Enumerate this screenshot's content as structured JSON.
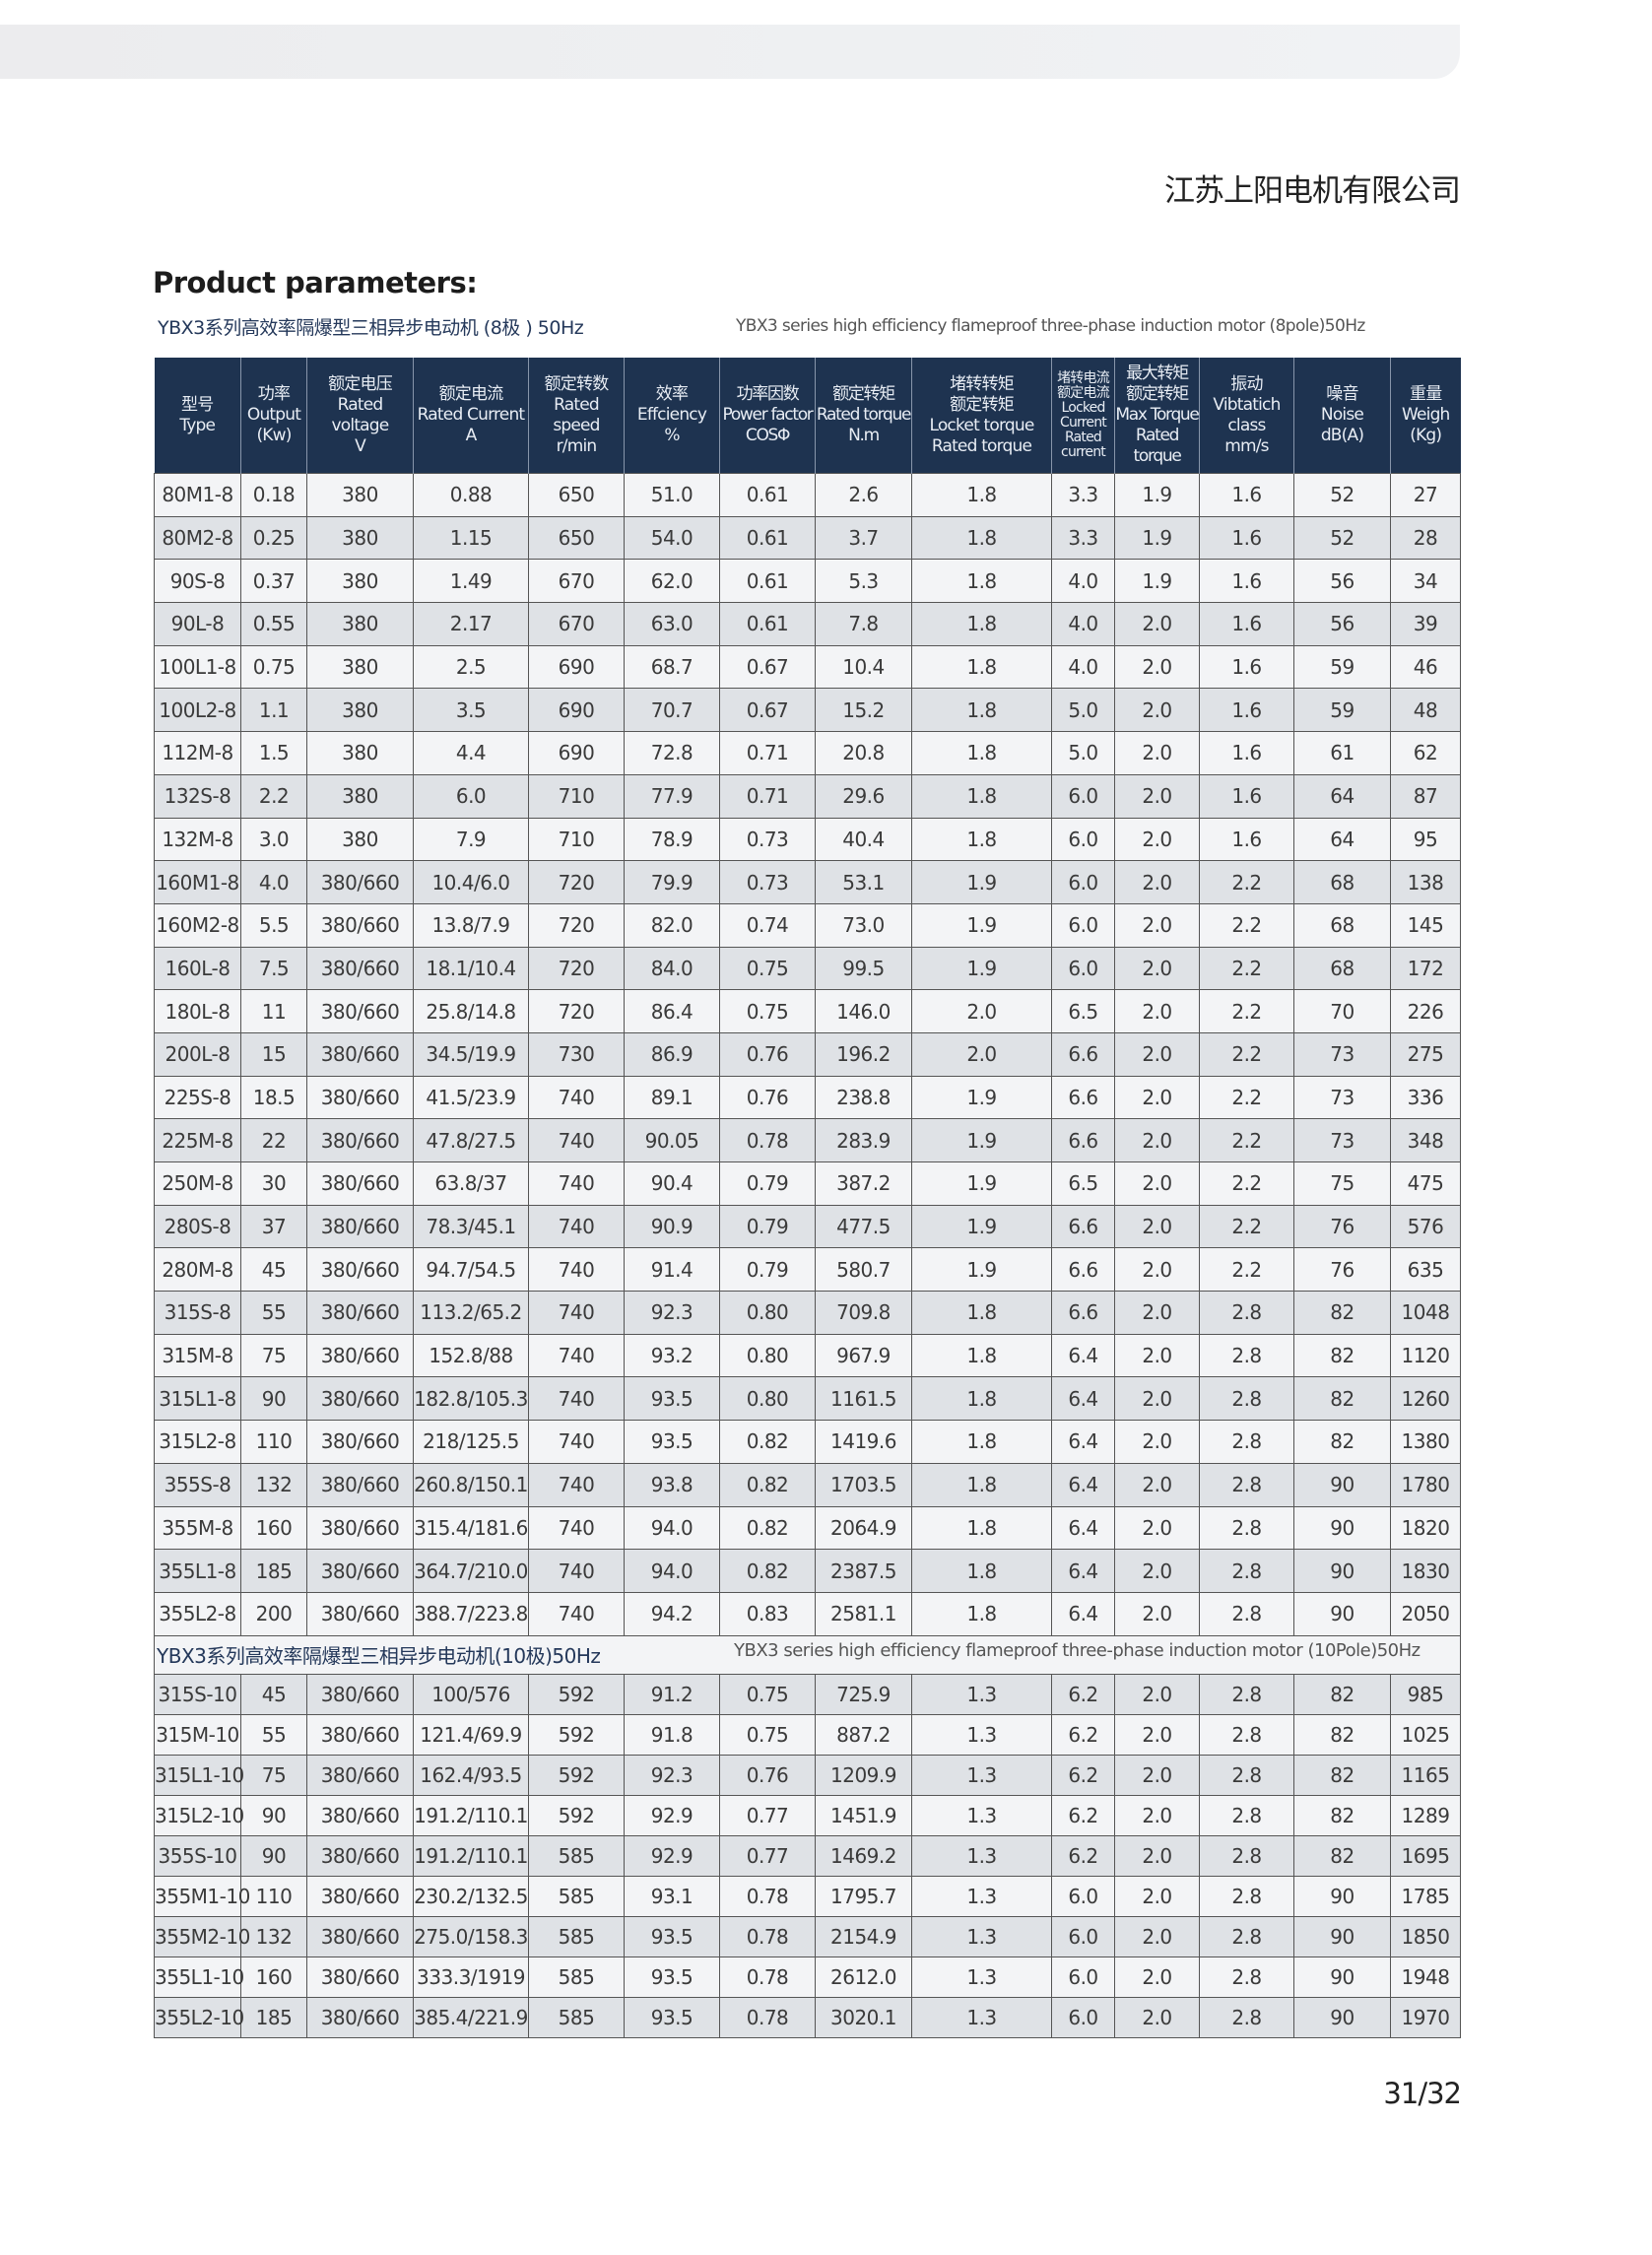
{
  "company": "江苏上阳电机有限公司",
  "title": "Product parameters:",
  "section8": {
    "cn": "YBX3系列高效率隔爆型三相异步电动机 (8极 ) 50Hz",
    "en": "YBX3 series high efficiency flameproof three-phase induction motor (8pole)50Hz"
  },
  "section10": {
    "cn": "YBX3系列高效率隔爆型三相异步电动机(10极)50Hz",
    "en": "YBX3 series high efficiency flameproof three-phase induction motor (10Pole)50Hz"
  },
  "headers": [
    [
      "型号",
      "Type"
    ],
    [
      "功率",
      "Output",
      "(Kw)"
    ],
    [
      "额定电压",
      "Rated voltage",
      "V"
    ],
    [
      "额定电流",
      "Rated Current",
      "A"
    ],
    [
      "额定转数",
      "Rated",
      "speed",
      "r/min"
    ],
    [
      "效率",
      "Effciency",
      "%"
    ],
    [
      "功率因数",
      "Power factor",
      "COSΦ"
    ],
    [
      "额定转矩",
      "Rated torque",
      "N.m"
    ],
    [
      "堵转转矩",
      "额定转矩",
      "Locket torque",
      "Rated torque"
    ],
    [
      "堵转电流",
      "额定电流",
      "Locked",
      "Current",
      "Rated",
      "current"
    ],
    [
      "最大转矩",
      "额定转矩",
      "Max Torque",
      "Rated torque"
    ],
    [
      "振动",
      "Vibtatich",
      "class",
      "mm/s"
    ],
    [
      "噪音",
      "Noise",
      "dB(A)"
    ],
    [
      "重量",
      "Weigh",
      "(Kg)"
    ]
  ],
  "rows8": [
    [
      "80M1-8",
      "0.18",
      "380",
      "0.88",
      "650",
      "51.0",
      "0.61",
      "2.6",
      "1.8",
      "3.3",
      "1.9",
      "1.6",
      "52",
      "27"
    ],
    [
      "80M2-8",
      "0.25",
      "380",
      "1.15",
      "650",
      "54.0",
      "0.61",
      "3.7",
      "1.8",
      "3.3",
      "1.9",
      "1.6",
      "52",
      "28"
    ],
    [
      "90S-8",
      "0.37",
      "380",
      "1.49",
      "670",
      "62.0",
      "0.61",
      "5.3",
      "1.8",
      "4.0",
      "1.9",
      "1.6",
      "56",
      "34"
    ],
    [
      "90L-8",
      "0.55",
      "380",
      "2.17",
      "670",
      "63.0",
      "0.61",
      "7.8",
      "1.8",
      "4.0",
      "2.0",
      "1.6",
      "56",
      "39"
    ],
    [
      "100L1-8",
      "0.75",
      "380",
      "2.5",
      "690",
      "68.7",
      "0.67",
      "10.4",
      "1.8",
      "4.0",
      "2.0",
      "1.6",
      "59",
      "46"
    ],
    [
      "100L2-8",
      "1.1",
      "380",
      "3.5",
      "690",
      "70.7",
      "0.67",
      "15.2",
      "1.8",
      "5.0",
      "2.0",
      "1.6",
      "59",
      "48"
    ],
    [
      "112M-8",
      "1.5",
      "380",
      "4.4",
      "690",
      "72.8",
      "0.71",
      "20.8",
      "1.8",
      "5.0",
      "2.0",
      "1.6",
      "61",
      "62"
    ],
    [
      "132S-8",
      "2.2",
      "380",
      "6.0",
      "710",
      "77.9",
      "0.71",
      "29.6",
      "1.8",
      "6.0",
      "2.0",
      "1.6",
      "64",
      "87"
    ],
    [
      "132M-8",
      "3.0",
      "380",
      "7.9",
      "710",
      "78.9",
      "0.73",
      "40.4",
      "1.8",
      "6.0",
      "2.0",
      "1.6",
      "64",
      "95"
    ],
    [
      "160M1-8",
      "4.0",
      "380/660",
      "10.4/6.0",
      "720",
      "79.9",
      "0.73",
      "53.1",
      "1.9",
      "6.0",
      "2.0",
      "2.2",
      "68",
      "138"
    ],
    [
      "160M2-8",
      "5.5",
      "380/660",
      "13.8/7.9",
      "720",
      "82.0",
      "0.74",
      "73.0",
      "1.9",
      "6.0",
      "2.0",
      "2.2",
      "68",
      "145"
    ],
    [
      "160L-8",
      "7.5",
      "380/660",
      "18.1/10.4",
      "720",
      "84.0",
      "0.75",
      "99.5",
      "1.9",
      "6.0",
      "2.0",
      "2.2",
      "68",
      "172"
    ],
    [
      "180L-8",
      "11",
      "380/660",
      "25.8/14.8",
      "720",
      "86.4",
      "0.75",
      "146.0",
      "2.0",
      "6.5",
      "2.0",
      "2.2",
      "70",
      "226"
    ],
    [
      "200L-8",
      "15",
      "380/660",
      "34.5/19.9",
      "730",
      "86.9",
      "0.76",
      "196.2",
      "2.0",
      "6.6",
      "2.0",
      "2.2",
      "73",
      "275"
    ],
    [
      "225S-8",
      "18.5",
      "380/660",
      "41.5/23.9",
      "740",
      "89.1",
      "0.76",
      "238.8",
      "1.9",
      "6.6",
      "2.0",
      "2.2",
      "73",
      "336"
    ],
    [
      "225M-8",
      "22",
      "380/660",
      "47.8/27.5",
      "740",
      "90.05",
      "0.78",
      "283.9",
      "1.9",
      "6.6",
      "2.0",
      "2.2",
      "73",
      "348"
    ],
    [
      "250M-8",
      "30",
      "380/660",
      "63.8/37",
      "740",
      "90.4",
      "0.79",
      "387.2",
      "1.9",
      "6.5",
      "2.0",
      "2.2",
      "75",
      "475"
    ],
    [
      "280S-8",
      "37",
      "380/660",
      "78.3/45.1",
      "740",
      "90.9",
      "0.79",
      "477.5",
      "1.9",
      "6.6",
      "2.0",
      "2.2",
      "76",
      "576"
    ],
    [
      "280M-8",
      "45",
      "380/660",
      "94.7/54.5",
      "740",
      "91.4",
      "0.79",
      "580.7",
      "1.9",
      "6.6",
      "2.0",
      "2.2",
      "76",
      "635"
    ],
    [
      "315S-8",
      "55",
      "380/660",
      "113.2/65.2",
      "740",
      "92.3",
      "0.80",
      "709.8",
      "1.8",
      "6.6",
      "2.0",
      "2.8",
      "82",
      "1048"
    ],
    [
      "315M-8",
      "75",
      "380/660",
      "152.8/88",
      "740",
      "93.2",
      "0.80",
      "967.9",
      "1.8",
      "6.4",
      "2.0",
      "2.8",
      "82",
      "1120"
    ],
    [
      "315L1-8",
      "90",
      "380/660",
      "182.8/105.3",
      "740",
      "93.5",
      "0.80",
      "1161.5",
      "1.8",
      "6.4",
      "2.0",
      "2.8",
      "82",
      "1260"
    ],
    [
      "315L2-8",
      "110",
      "380/660",
      "218/125.5",
      "740",
      "93.5",
      "0.82",
      "1419.6",
      "1.8",
      "6.4",
      "2.0",
      "2.8",
      "82",
      "1380"
    ],
    [
      "355S-8",
      "132",
      "380/660",
      "260.8/150.1",
      "740",
      "93.8",
      "0.82",
      "1703.5",
      "1.8",
      "6.4",
      "2.0",
      "2.8",
      "90",
      "1780"
    ],
    [
      "355M-8",
      "160",
      "380/660",
      "315.4/181.6",
      "740",
      "94.0",
      "0.82",
      "2064.9",
      "1.8",
      "6.4",
      "2.0",
      "2.8",
      "90",
      "1820"
    ],
    [
      "355L1-8",
      "185",
      "380/660",
      "364.7/210.0",
      "740",
      "94.0",
      "0.82",
      "2387.5",
      "1.8",
      "6.4",
      "2.0",
      "2.8",
      "90",
      "1830"
    ],
    [
      "355L2-8",
      "200",
      "380/660",
      "388.7/223.8",
      "740",
      "94.2",
      "0.83",
      "2581.1",
      "1.8",
      "6.4",
      "2.0",
      "2.8",
      "90",
      "2050"
    ]
  ],
  "rows10": [
    [
      "315S-10",
      "45",
      "380/660",
      "100/576",
      "592",
      "91.2",
      "0.75",
      "725.9",
      "1.3",
      "6.2",
      "2.0",
      "2.8",
      "82",
      "985"
    ],
    [
      "315M-10",
      "55",
      "380/660",
      "121.4/69.9",
      "592",
      "91.8",
      "0.75",
      "887.2",
      "1.3",
      "6.2",
      "2.0",
      "2.8",
      "82",
      "1025"
    ],
    [
      "315L1-10",
      "75",
      "380/660",
      "162.4/93.5",
      "592",
      "92.3",
      "0.76",
      "1209.9",
      "1.3",
      "6.2",
      "2.0",
      "2.8",
      "82",
      "1165"
    ],
    [
      "315L2-10",
      "90",
      "380/660",
      "191.2/110.1",
      "592",
      "92.9",
      "0.77",
      "1451.9",
      "1.3",
      "6.2",
      "2.0",
      "2.8",
      "82",
      "1289"
    ],
    [
      "355S-10",
      "90",
      "380/660",
      "191.2/110.1",
      "585",
      "92.9",
      "0.77",
      "1469.2",
      "1.3",
      "6.2",
      "2.0",
      "2.8",
      "82",
      "1695"
    ],
    [
      "355M1-10",
      "110",
      "380/660",
      "230.2/132.5",
      "585",
      "93.1",
      "0.78",
      "1795.7",
      "1.3",
      "6.0",
      "2.0",
      "2.8",
      "90",
      "1785"
    ],
    [
      "355M2-10",
      "132",
      "380/660",
      "275.0/158.3",
      "585",
      "93.5",
      "0.78",
      "2154.9",
      "1.3",
      "6.0",
      "2.0",
      "2.8",
      "90",
      "1850"
    ],
    [
      "355L1-10",
      "160",
      "380/660",
      "333.3/1919",
      "585",
      "93.5",
      "0.78",
      "2612.0",
      "1.3",
      "6.0",
      "2.0",
      "2.8",
      "90",
      "1948"
    ],
    [
      "355L2-10",
      "185",
      "380/660",
      "385.4/221.9",
      "585",
      "93.5",
      "0.78",
      "3020.1",
      "1.3",
      "6.0",
      "2.0",
      "2.8",
      "90",
      "1970"
    ]
  ],
  "page_number": "31/32",
  "colors": {
    "header_bg": "#1e3350",
    "row_light": "#f3f4f6",
    "row_dark": "#dfe2e6",
    "accent_text": "#24385a"
  }
}
